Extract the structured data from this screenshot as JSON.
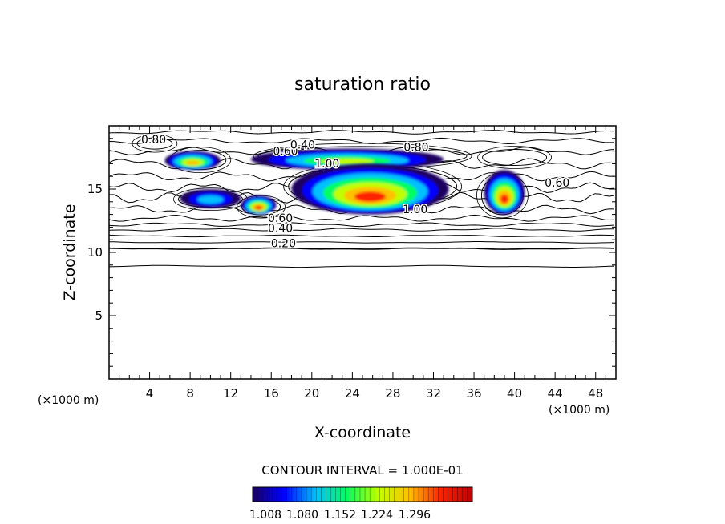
{
  "chart_data": {
    "type": "contour",
    "title": "saturation ratio",
    "xlabel": "X-coordinate",
    "ylabel": "Z-coordinate",
    "x_unit": "(×1000 m)",
    "z_unit": "(×1000 m)",
    "xlim": [
      0,
      50
    ],
    "ylim": [
      0,
      20
    ],
    "x_ticks": [
      4,
      8,
      12,
      16,
      20,
      24,
      28,
      32,
      36,
      40,
      44,
      48
    ],
    "y_ticks": [
      5,
      10,
      15
    ],
    "contour_interval_text": "CONTOUR INTERVAL = 1.000E-01",
    "colorbar": {
      "labels": [
        "1.008",
        "1.080",
        "1.152",
        "1.224",
        "1.296"
      ],
      "colors": [
        "#1a0060",
        "#0000ff",
        "#00c0ff",
        "#00ff60",
        "#c0ff00",
        "#ffc000",
        "#ff2000",
        "#c00000"
      ]
    },
    "contour_labels": [
      {
        "text": "0.80",
        "x": 4.4,
        "z": 18.6
      },
      {
        "text": "0.60",
        "x": 17.4,
        "z": 17.7
      },
      {
        "text": "0.40",
        "x": 19.1,
        "z": 18.2
      },
      {
        "text": "0.80",
        "x": 30.3,
        "z": 18.0
      },
      {
        "text": "1.00",
        "x": 21.5,
        "z": 16.7
      },
      {
        "text": "0.60",
        "x": 44.2,
        "z": 15.2
      },
      {
        "text": "1.00",
        "x": 30.2,
        "z": 13.1
      },
      {
        "text": "0.60",
        "x": 16.9,
        "z": 12.4
      },
      {
        "text": "0.40",
        "x": 16.9,
        "z": 11.6
      },
      {
        "text": "0.20",
        "x": 17.2,
        "z": 10.4
      }
    ],
    "supersaturated_regions": [
      {
        "x_range": [
          5.5,
          11
        ],
        "z_range": [
          16.5,
          18
        ],
        "peak": 1.25
      },
      {
        "x_range": [
          7,
          13
        ],
        "z_range": [
          13.5,
          15
        ],
        "peak": 1.05
      },
      {
        "x_range": [
          13,
          16.5
        ],
        "z_range": [
          13,
          14.5
        ],
        "peak": 1.3
      },
      {
        "x_range": [
          14,
          33
        ],
        "z_range": [
          16.5,
          18.2
        ],
        "peak": 1.2
      },
      {
        "x_range": [
          18,
          33.5
        ],
        "z_range": [
          13,
          17
        ],
        "peak": 1.3
      },
      {
        "x_range": [
          37,
          41
        ],
        "z_range": [
          13,
          16.5
        ],
        "peak": 1.28
      }
    ]
  }
}
